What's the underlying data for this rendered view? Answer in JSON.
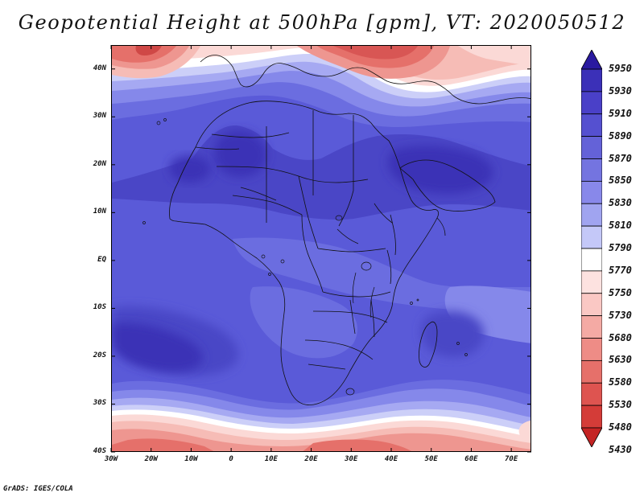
{
  "title": "Geopotential Height at 500hPa [gpm], VT: 2020050512",
  "credit": "GrADS: IGES/COLA",
  "map": {
    "variable": "Geopotential Height",
    "level": "500hPa",
    "units": "gpm",
    "valid_time": "2020050512",
    "lat_labels": [
      "40N",
      "30N",
      "20N",
      "10N",
      "EQ",
      "10S",
      "20S",
      "30S",
      "40S"
    ],
    "lon_labels": [
      "30W",
      "20W",
      "10W",
      "0",
      "10E",
      "20E",
      "30E",
      "40E",
      "50E",
      "60E",
      "70E"
    ]
  },
  "colorbar": {
    "labels": [
      "5950",
      "5930",
      "5910",
      "5890",
      "5870",
      "5850",
      "5830",
      "5810",
      "5790",
      "5770",
      "5750",
      "5730",
      "5680",
      "5630",
      "5580",
      "5530",
      "5480",
      "5430"
    ],
    "colors": [
      "#2a1aa0",
      "#3b30b8",
      "#4a40c8",
      "#5550d0",
      "#6462d8",
      "#7474e0",
      "#8888ea",
      "#a0a4f0",
      "#c4c8f8",
      "#ffffff",
      "#fde2e0",
      "#fac8c4",
      "#f4aaa4",
      "#ee8c86",
      "#e6706a",
      "#de5450",
      "#d43c38",
      "#c42424"
    ]
  }
}
